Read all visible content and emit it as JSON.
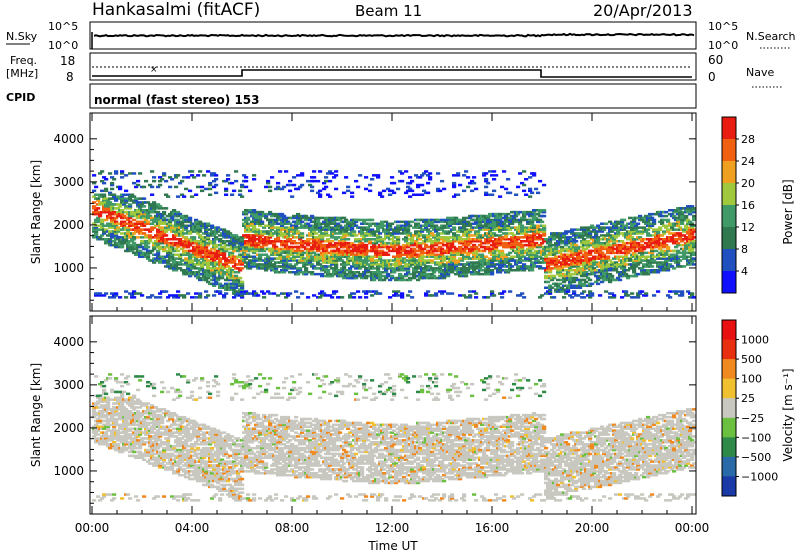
{
  "header": {
    "station": "Hankasalmi (fitACF)",
    "beam": "Beam 11",
    "date": "20/Apr/2013"
  },
  "noise_panel": {
    "left_label": "N.Sky",
    "left_ticks": [
      "10^5",
      "10^0"
    ],
    "right_label": "N.Search",
    "right_ticks": [
      "10^5",
      "10^0"
    ]
  },
  "freq_panel": {
    "left_label_line1": "Freq.",
    "left_label_line2": "[MHz]",
    "left_ticks": [
      "18",
      "8"
    ],
    "right_label": "Nave",
    "right_ticks": [
      "60",
      "0"
    ]
  },
  "cpid_panel": {
    "label": "CPID",
    "text": "normal (fast stereo) 153"
  },
  "chart_data": [
    {
      "type": "heatmap",
      "name": "power",
      "ylabel": "Slant Range [km]",
      "ylim": [
        0,
        4600
      ],
      "yticks": [
        "1000",
        "2000",
        "3000",
        "4000"
      ],
      "colorbar_label": "Power [dB]",
      "colorbar_ticks": [
        "28",
        "24",
        "20",
        "16",
        "12",
        "8",
        "4"
      ],
      "colors": [
        "#1010ff",
        "#2050c0",
        "#307850",
        "#409a68",
        "#a0c83c",
        "#f0a020",
        "#f06010",
        "#e81c10"
      ]
    },
    {
      "type": "heatmap",
      "name": "velocity",
      "ylabel": "Slant Range [km]",
      "ylim": [
        0,
        4600
      ],
      "yticks": [
        "1000",
        "2000",
        "3000",
        "4000"
      ],
      "xlabel": "Time UT",
      "xticks": [
        "00:00",
        "04:00",
        "08:00",
        "12:00",
        "16:00",
        "20:00",
        "00:00"
      ],
      "colorbar_label": "Velocity [m s⁻¹]",
      "colorbar_ticks": [
        "1000",
        "500",
        "100",
        "25",
        "−25",
        "−100",
        "−500",
        "−1000"
      ],
      "colors": [
        "#1a3aa8",
        "#2a6aa8",
        "#2f8a4a",
        "#6cc040",
        "#c8c8c0",
        "#f0c030",
        "#f08a20",
        "#e83010",
        "#e81010"
      ]
    }
  ]
}
